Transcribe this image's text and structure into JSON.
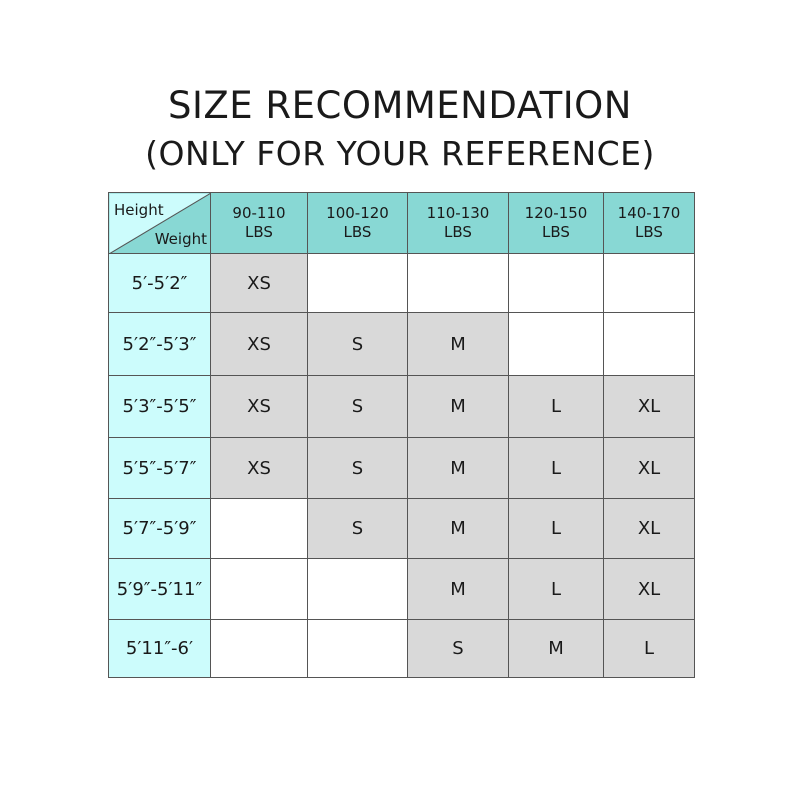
{
  "title": "SIZE RECOMMENDATION",
  "subtitle": "(ONLY FOR YOUR REFERENCE)",
  "table": {
    "corner": {
      "row_label": "Height",
      "col_label": "Weight"
    },
    "columns": [
      {
        "range": "90-110",
        "unit": "LBS"
      },
      {
        "range": "100-120",
        "unit": "LBS"
      },
      {
        "range": "110-130",
        "unit": "LBS"
      },
      {
        "range": "120-150",
        "unit": "LBS"
      },
      {
        "range": "140-170",
        "unit": "LBS"
      }
    ],
    "rows": [
      {
        "height": "5′-5′2″",
        "sizes": [
          "XS",
          "",
          "",
          "",
          ""
        ]
      },
      {
        "height": "5′2″-5′3″",
        "sizes": [
          "XS",
          "S",
          "M",
          "",
          ""
        ]
      },
      {
        "height": "5′3″-5′5″",
        "sizes": [
          "XS",
          "S",
          "M",
          "L",
          "XL"
        ]
      },
      {
        "height": "5′5″-5′7″",
        "sizes": [
          "XS",
          "S",
          "M",
          "L",
          "XL"
        ]
      },
      {
        "height": "5′7″-5′9″",
        "sizes": [
          "",
          "S",
          "M",
          "L",
          "XL"
        ]
      },
      {
        "height": "5′9″-5′11″",
        "sizes": [
          "",
          "",
          "M",
          "L",
          "XL"
        ]
      },
      {
        "height": "5′11″-6′",
        "sizes": [
          "",
          "",
          "S",
          "M",
          "L"
        ]
      }
    ]
  },
  "colors": {
    "header": "#88d8d4",
    "row_header": "#ccfcfc",
    "filled_cell": "#d9d9d9"
  }
}
